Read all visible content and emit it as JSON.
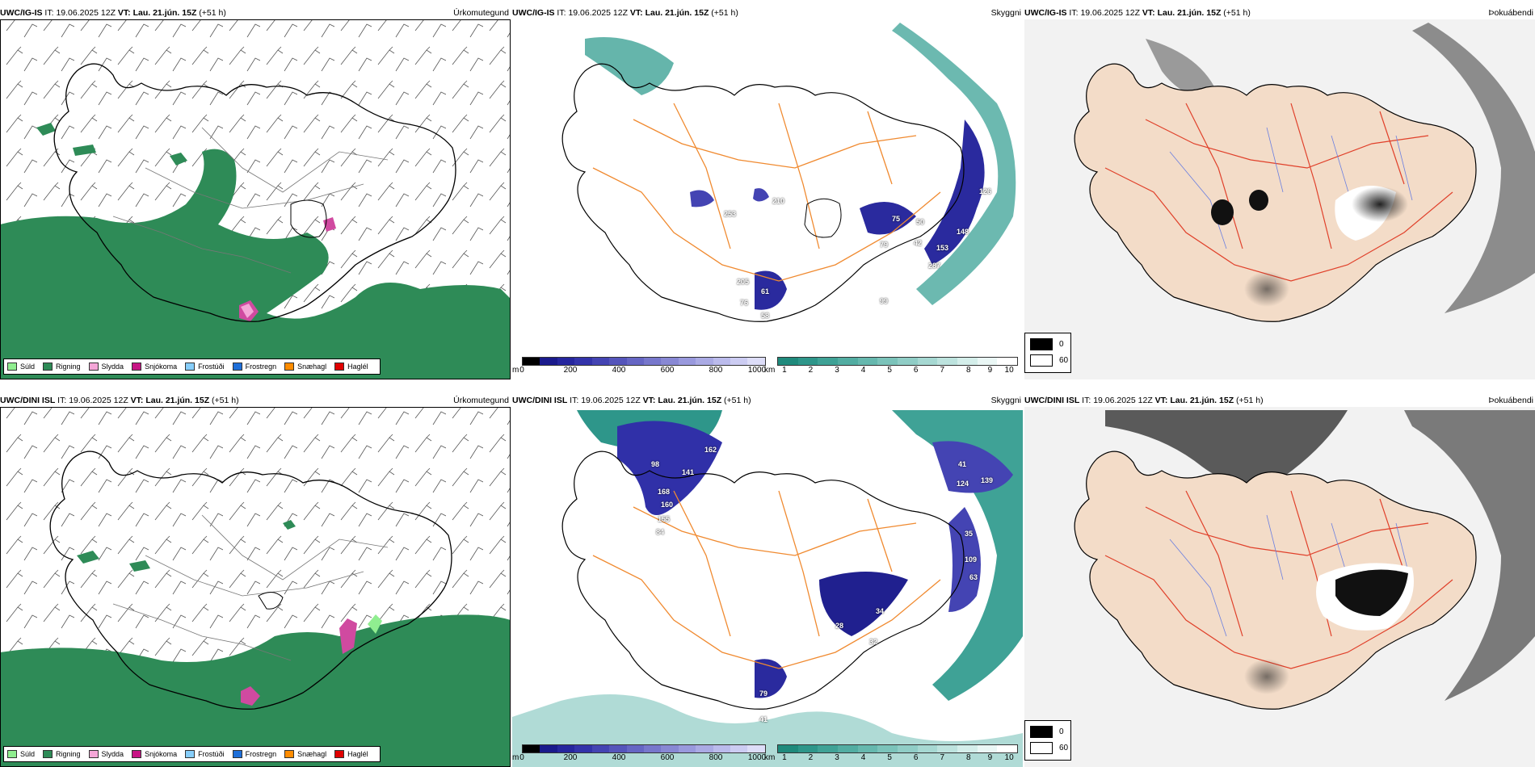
{
  "rows": [
    {
      "model": "UWC/IG-IS",
      "it_label": "IT:",
      "it_value": "19.06.2025 12Z",
      "vt_label": "VT:",
      "vt_value": "Lau. 21.jún. 15Z",
      "lead": "(+51 h)",
      "precip_title": "Úrkomutegund",
      "cloud_title": "Skyggni",
      "fog_title": "Þokuábendi",
      "cloud_labels": [
        "126",
        "148",
        "153",
        "287",
        "79",
        "75",
        "50",
        "42",
        "99",
        "61",
        "58",
        "76",
        "205",
        "210",
        "253"
      ]
    },
    {
      "model": "UWC/DINI ISL",
      "it_label": "IT:",
      "it_value": "19.06.2025 12Z",
      "vt_label": "VT:",
      "vt_value": "Lau. 21.jún. 15Z",
      "lead": "(+51 h)",
      "precip_title": "Úrkomutegund",
      "cloud_title": "Skyggni",
      "fog_title": "Þokuábendi",
      "cloud_labels": [
        "162",
        "141",
        "168",
        "160",
        "155",
        "84",
        "98",
        "124",
        "139",
        "41",
        "35",
        "32",
        "34",
        "28",
        "79",
        "41",
        "63",
        "109"
      ]
    }
  ],
  "precip_legend": [
    {
      "label": "Súld",
      "color": "#90ee90"
    },
    {
      "label": "Rigning",
      "color": "#2e8b57"
    },
    {
      "label": "Slydda",
      "color": "#f4a6d7"
    },
    {
      "label": "Snjókoma",
      "color": "#c71585"
    },
    {
      "label": "Frostúði",
      "color": "#87cefa"
    },
    {
      "label": "Frostregn",
      "color": "#1e6fd9"
    },
    {
      "label": "Snæhagl",
      "color": "#ff8c00"
    },
    {
      "label": "Haglél",
      "color": "#e00000"
    }
  ],
  "cloudbase_bar": {
    "unit": "m",
    "ticks": [
      "0",
      "200",
      "400",
      "600",
      "800",
      "1000"
    ],
    "colors": [
      "#000000",
      "#1a1a8c",
      "#26269e",
      "#3333aa",
      "#4444b3",
      "#5555bb",
      "#6666c4",
      "#7777cc",
      "#8888d4",
      "#9999dd",
      "#aaaae4",
      "#bbbbec",
      "#ccccf2",
      "#ddddf8"
    ]
  },
  "visibility_bar": {
    "unit": "km",
    "ticks": [
      "1",
      "2",
      "3",
      "4",
      "5",
      "6",
      "7",
      "8",
      "9",
      "10"
    ],
    "colors": [
      "#1f8a7c",
      "#2e968a",
      "#3fa296",
      "#52ada2",
      "#66b8ae",
      "#7bc3ba",
      "#90cdc6",
      "#a6d8d2",
      "#bde3de",
      "#d4eeea",
      "#eaf7f5",
      "#ffffff"
    ]
  },
  "fog_legend": [
    {
      "label": "0",
      "color": "#000000"
    },
    {
      "label": "60",
      "color": "#ffffff"
    }
  ],
  "colors": {
    "land_beige": "#f3dcc8",
    "roads_red": "#e0402a",
    "rivers_blue": "#6a7fe0",
    "roads_orange": "#f08a30",
    "rain_green": "#2e8b57",
    "coast": "#000000"
  }
}
